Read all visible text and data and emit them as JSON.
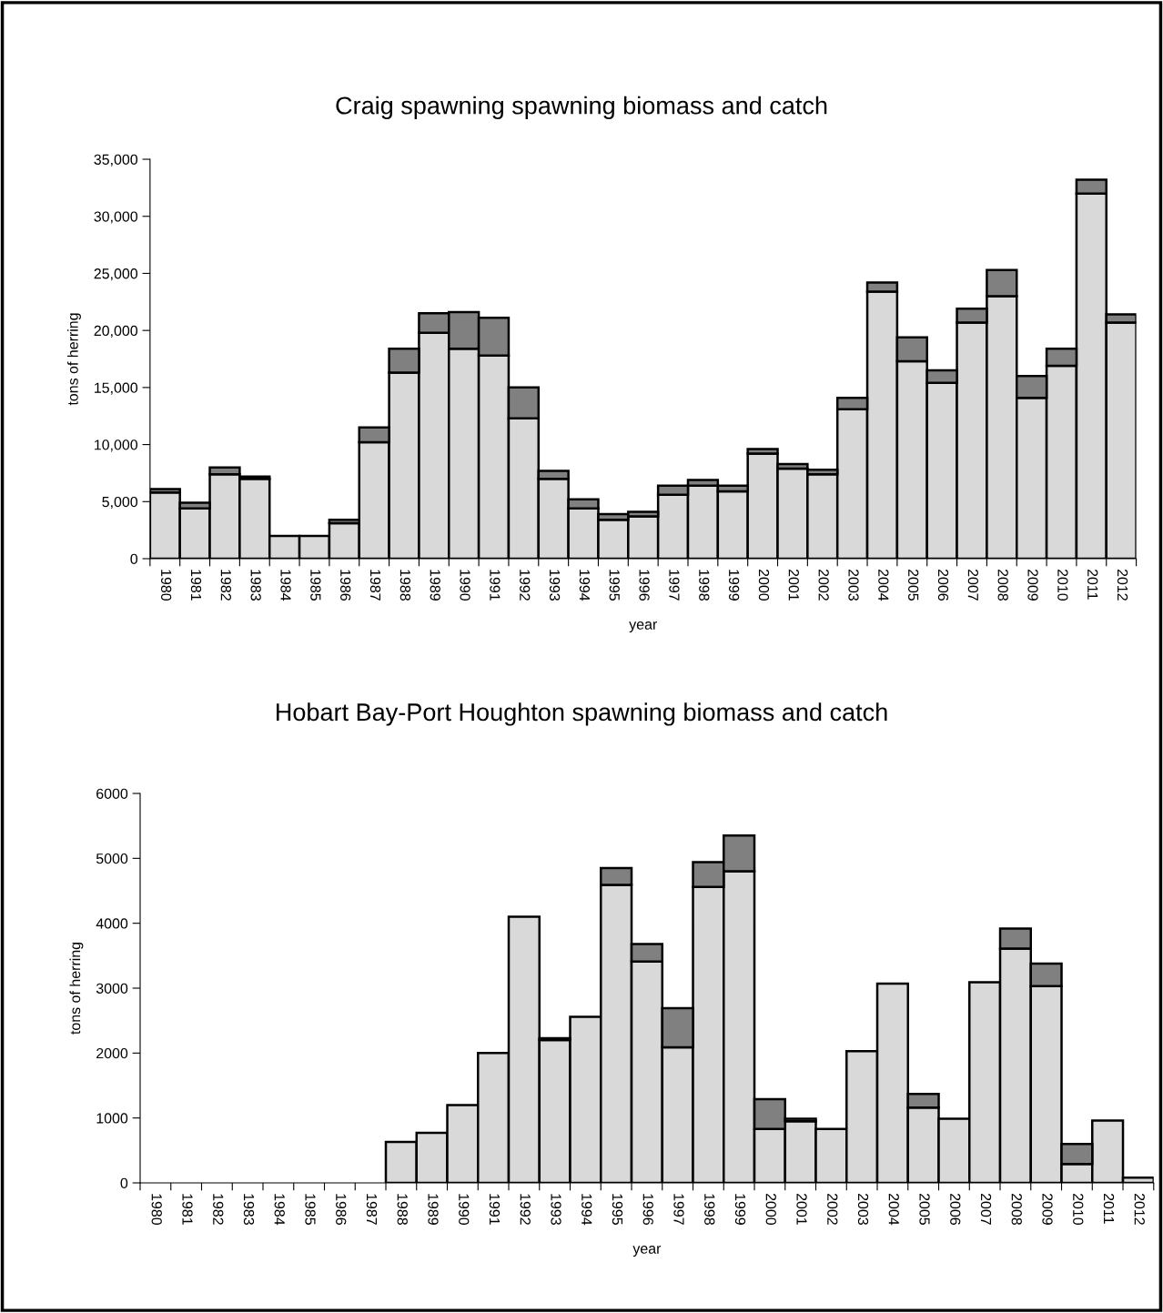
{
  "chart_data": [
    {
      "type": "bar",
      "title": "Craig spawning spawning biomass and catch",
      "xlabel": "year",
      "ylabel": "tons of herring",
      "stacked": true,
      "categories": [
        "1980",
        "1981",
        "1982",
        "1983",
        "1984",
        "1985",
        "1986",
        "1987",
        "1988",
        "1989",
        "1990",
        "1991",
        "1992",
        "1993",
        "1994",
        "1995",
        "1996",
        "1997",
        "1998",
        "1999",
        "2000",
        "2001",
        "2002",
        "2003",
        "2004",
        "2005",
        "2006",
        "2007",
        "2008",
        "2009",
        "2010",
        "2011",
        "2012"
      ],
      "series": [
        {
          "color": "#d9d9d9",
          "values": [
            5800,
            4400,
            7400,
            7000,
            2000,
            2000,
            3100,
            10200,
            16300,
            19800,
            18400,
            17800,
            12300,
            7000,
            4400,
            3400,
            3700,
            5600,
            6400,
            5900,
            9200,
            7900,
            7400,
            13100,
            23400,
            17300,
            15400,
            20700,
            23000,
            14100,
            16900,
            32000,
            20700
          ]
        },
        {
          "color": "#808080",
          "values": [
            300,
            500,
            600,
            200,
            0,
            0,
            300,
            1300,
            2100,
            1700,
            3200,
            3300,
            2700,
            700,
            800,
            500,
            400,
            800,
            500,
            500,
            400,
            400,
            400,
            1000,
            800,
            2100,
            1100,
            1200,
            2300,
            1900,
            1500,
            1200,
            700
          ]
        }
      ],
      "ylim": [
        0,
        35000
      ],
      "yticks": [
        0,
        {
          "value": 5000,
          "label": "5,000"
        },
        {
          "value": 10000,
          "label": "10,000"
        },
        {
          "value": 15000,
          "label": "15,000"
        },
        {
          "value": 20000,
          "label": "20,000"
        },
        {
          "value": 25000,
          "label": "25,000"
        },
        {
          "value": 30000,
          "label": "30,000"
        },
        {
          "value": 35000,
          "label": "35,000"
        }
      ]
    },
    {
      "type": "bar",
      "title": "Hobart Bay-Port Houghton spawning biomass and catch",
      "xlabel": "year",
      "ylabel": "tons of herring",
      "stacked": true,
      "categories": [
        "1980",
        "1981",
        "1982",
        "1983",
        "1984",
        "1985",
        "1986",
        "1987",
        "1988",
        "1989",
        "1990",
        "1991",
        "1992",
        "1993",
        "1994",
        "1995",
        "1996",
        "1997",
        "1998",
        "1999",
        "2000",
        "2001",
        "2002",
        "2003",
        "2004",
        "2005",
        "2006",
        "2007",
        "2008",
        "2009",
        "2010",
        "2011",
        "2012"
      ],
      "series": [
        {
          "color": "#d9d9d9",
          "values": [
            0,
            0,
            0,
            0,
            0,
            0,
            0,
            0,
            630,
            770,
            1200,
            2000,
            4100,
            2200,
            2560,
            4590,
            3410,
            2090,
            4560,
            4800,
            830,
            950,
            830,
            2030,
            3070,
            1160,
            990,
            3090,
            3610,
            3030,
            290,
            960,
            80
          ]
        },
        {
          "color": "#808080",
          "values": [
            0,
            0,
            0,
            0,
            0,
            0,
            0,
            0,
            0,
            0,
            0,
            0,
            0,
            30,
            0,
            260,
            270,
            600,
            380,
            550,
            460,
            40,
            0,
            0,
            0,
            210,
            0,
            0,
            310,
            350,
            310,
            0,
            0
          ]
        }
      ],
      "ylim": [
        0,
        6000
      ],
      "yticks": [
        0,
        1000,
        2000,
        3000,
        4000,
        5000,
        6000
      ]
    }
  ]
}
